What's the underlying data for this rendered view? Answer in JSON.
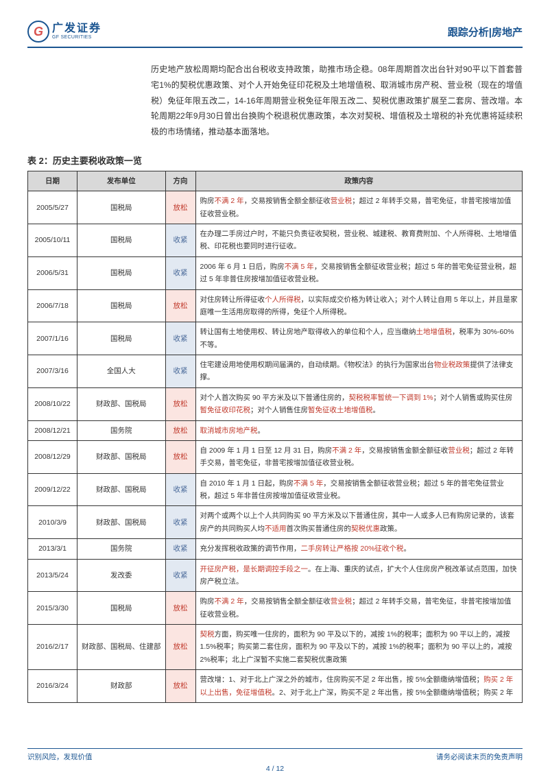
{
  "header": {
    "logo_cn": "广发证券",
    "logo_en": "GF SECURITIES",
    "logo_g": "G",
    "right": "跟踪分析|房地产"
  },
  "intro": "历史地产放松周期均配合出台税收支持政策，助推市场企稳。08年周期首次出台针对90平以下首套普宅1%的契税优惠政策、对个人开始免征印花税及土地增值税、取消城市房产税、营业税（现在的增值税）免征年限五改二，14-16年周期营业税免征年限五改二、契税优惠政策扩展至二套房、营改增。本轮周期22年9月30日曾出台换购个税退税优惠政策，本次对契税、增值税及土增税的补充优惠将延续积极的市场情绪，推动基本面落地。",
  "table": {
    "title": "表 2：历史主要税收政策一览",
    "columns": [
      "日期",
      "发布单位",
      "方向",
      "政策内容"
    ],
    "rows": [
      {
        "date": "2005/5/27",
        "issuer": "国税局",
        "dir": "放松",
        "dir_type": "loose",
        "content": "购房<span class='hl'>不满 2 年</span>，交易按销售全额全额征收<span class='hl'>营业税</span>；超过 2 年转手交易，普宅免征，非普宅按增加值征收营业税。"
      },
      {
        "date": "2005/10/11",
        "issuer": "国税局",
        "dir": "收紧",
        "dir_type": "tight",
        "content": "在办理二手房过户时，不能只负责征收契税，营业税、城建税、教育费附加、个人所得税、土地增值税、印花税也要同时进行征收。"
      },
      {
        "date": "2006/5/31",
        "issuer": "国税局",
        "dir": "收紧",
        "dir_type": "tight",
        "content": "2006 年 6 月 1 日后，购房<span class='hl'>不满 5 年</span>，交易按销售全额征收营业税；超过 5 年的普宅免征营业税，超过 5 年非普住房按增加值征收营业税。"
      },
      {
        "date": "2006/7/18",
        "issuer": "国税局",
        "dir": "放松",
        "dir_type": "loose",
        "content": "对住房转让所得征收<span class='hl'>个人所得税</span>，以实际成交价格为转让收入；对个人转让自用 5 年以上，并且是家庭唯一生活用房取得的所得，免征个人所得税。"
      },
      {
        "date": "2007/1/16",
        "issuer": "国税局",
        "dir": "收紧",
        "dir_type": "tight",
        "content": "转让国有土地使用权、转让房地产取得收入的单位和个人，应当缴纳<span class='hl'>土地增值税</span>，税率为 30%-60%不等。"
      },
      {
        "date": "2007/3/16",
        "issuer": "全国人大",
        "dir": "收紧",
        "dir_type": "tight",
        "content": "住宅建设用地使用权期间届满的，自动续期。《物权法》的执行为国家出台<span class='hl'>物业税政策</span>提供了法律支撑。"
      },
      {
        "date": "2008/10/22",
        "issuer": "财政部、国税局",
        "dir": "放松",
        "dir_type": "loose",
        "content": "对个人首次购买 90 平方米及以下普通住房的，<span class='hl'>契税税率暂统一下调到 1%</span>；对个人销售或购买住房<span class='hl'>暂免征收印花税</span>；对个人销售住房<span class='hl'>暂免征收土地增值税</span>。"
      },
      {
        "date": "2008/12/21",
        "issuer": "国务院",
        "dir": "放松",
        "dir_type": "loose",
        "content": "<span class='hl'>取消城市房地产税</span>。"
      },
      {
        "date": "2008/12/29",
        "issuer": "财政部、国税局",
        "dir": "放松",
        "dir_type": "loose",
        "content": "自 2009 年 1 月 1 日至 12 月 31 日，购房<span class='hl'>不满 2 年</span>，交易按销售金额全额征收<span class='hl'>营业税</span>；超过 2 年转手交易，普宅免征，非普宅按增加值征收营业税。"
      },
      {
        "date": "2009/12/22",
        "issuer": "财政部、国税局",
        "dir": "收紧",
        "dir_type": "tight",
        "content": "自 2010 年 1 月 1 日起，购房<span class='hl'>不满 5 年</span>，交易按销售全额征收营业税；超过 5 年的普宅免征营业税，超过 5 年非普住房按增加值征收营业税。"
      },
      {
        "date": "2010/3/9",
        "issuer": "财政部、国税局",
        "dir": "收紧",
        "dir_type": "tight",
        "content": "对两个或两个以上个人共同购买 90 平方米及以下普通住房，其中一人或多人已有购房记录的，该套房产的共同购买人均<span class='hl'>不适用</span>首次购买普通住房的<span class='hl'>契税优惠</span>政策。"
      },
      {
        "date": "2013/3/1",
        "issuer": "国务院",
        "dir": "收紧",
        "dir_type": "tight",
        "content": "充分发挥税收政策的调节作用，<span class='hl'>二手房转让严格按 20%征收个税</span>。"
      },
      {
        "date": "2013/5/24",
        "issuer": "发改委",
        "dir": "收紧",
        "dir_type": "tight",
        "content": "<span class='hl'>开征房产税，是长期调控手段之一</span>。在上海、重庆的试点，扩大个人住房房产税改革试点范围，加快房产税立法。"
      },
      {
        "date": "2015/3/30",
        "issuer": "国税局",
        "dir": "放松",
        "dir_type": "loose",
        "content": "购房<span class='hl'>不满 2 年</span>，交易按销售全额全额征收<span class='hl'>营业税</span>；超过 2 年转手交易，普宅免征，非普宅按增加值征收营业税。"
      },
      {
        "date": "2016/2/17",
        "issuer": "财政部、国税局、住建部",
        "dir": "放松",
        "dir_type": "loose",
        "content": "<span class='hl'>契税</span>方面，购买唯一住房的，面积为 90 平及以下的，减按 1%的税率；面积为 90 平以上的，减按 1.5%税率；购买第二套住房，面积为 90 平及以下的，减按 1%的税率；面积为 90 平以上的，减按 2%税率；北上广深暂不实施二套契税优惠政策"
      },
      {
        "date": "2016/3/24",
        "issuer": "财政部",
        "dir": "放松",
        "dir_type": "loose",
        "content": "营改增：1、对于北上广深之外的城市，住房购买不足 2 年出售，按 5%全额缴纳增值税；<span class='hl'>购买 2 年以上出售，免征增值税</span>。2、对于北上广深，购买不足 2 年出售，按 5%全额缴纳增值税；购买 2 年"
      }
    ]
  },
  "footer": {
    "left": "识别风险，发现价值",
    "right": "请务必阅读末页的免责声明",
    "page_current": "4",
    "page_total": "12"
  },
  "colors": {
    "brand_blue": "#1a5490",
    "highlight_red": "#c0392b",
    "loose_bg": "#fbe5e1",
    "tight_bg": "#e2e9f2",
    "thead_bg": "#d9d9d9",
    "border": "#333333"
  }
}
